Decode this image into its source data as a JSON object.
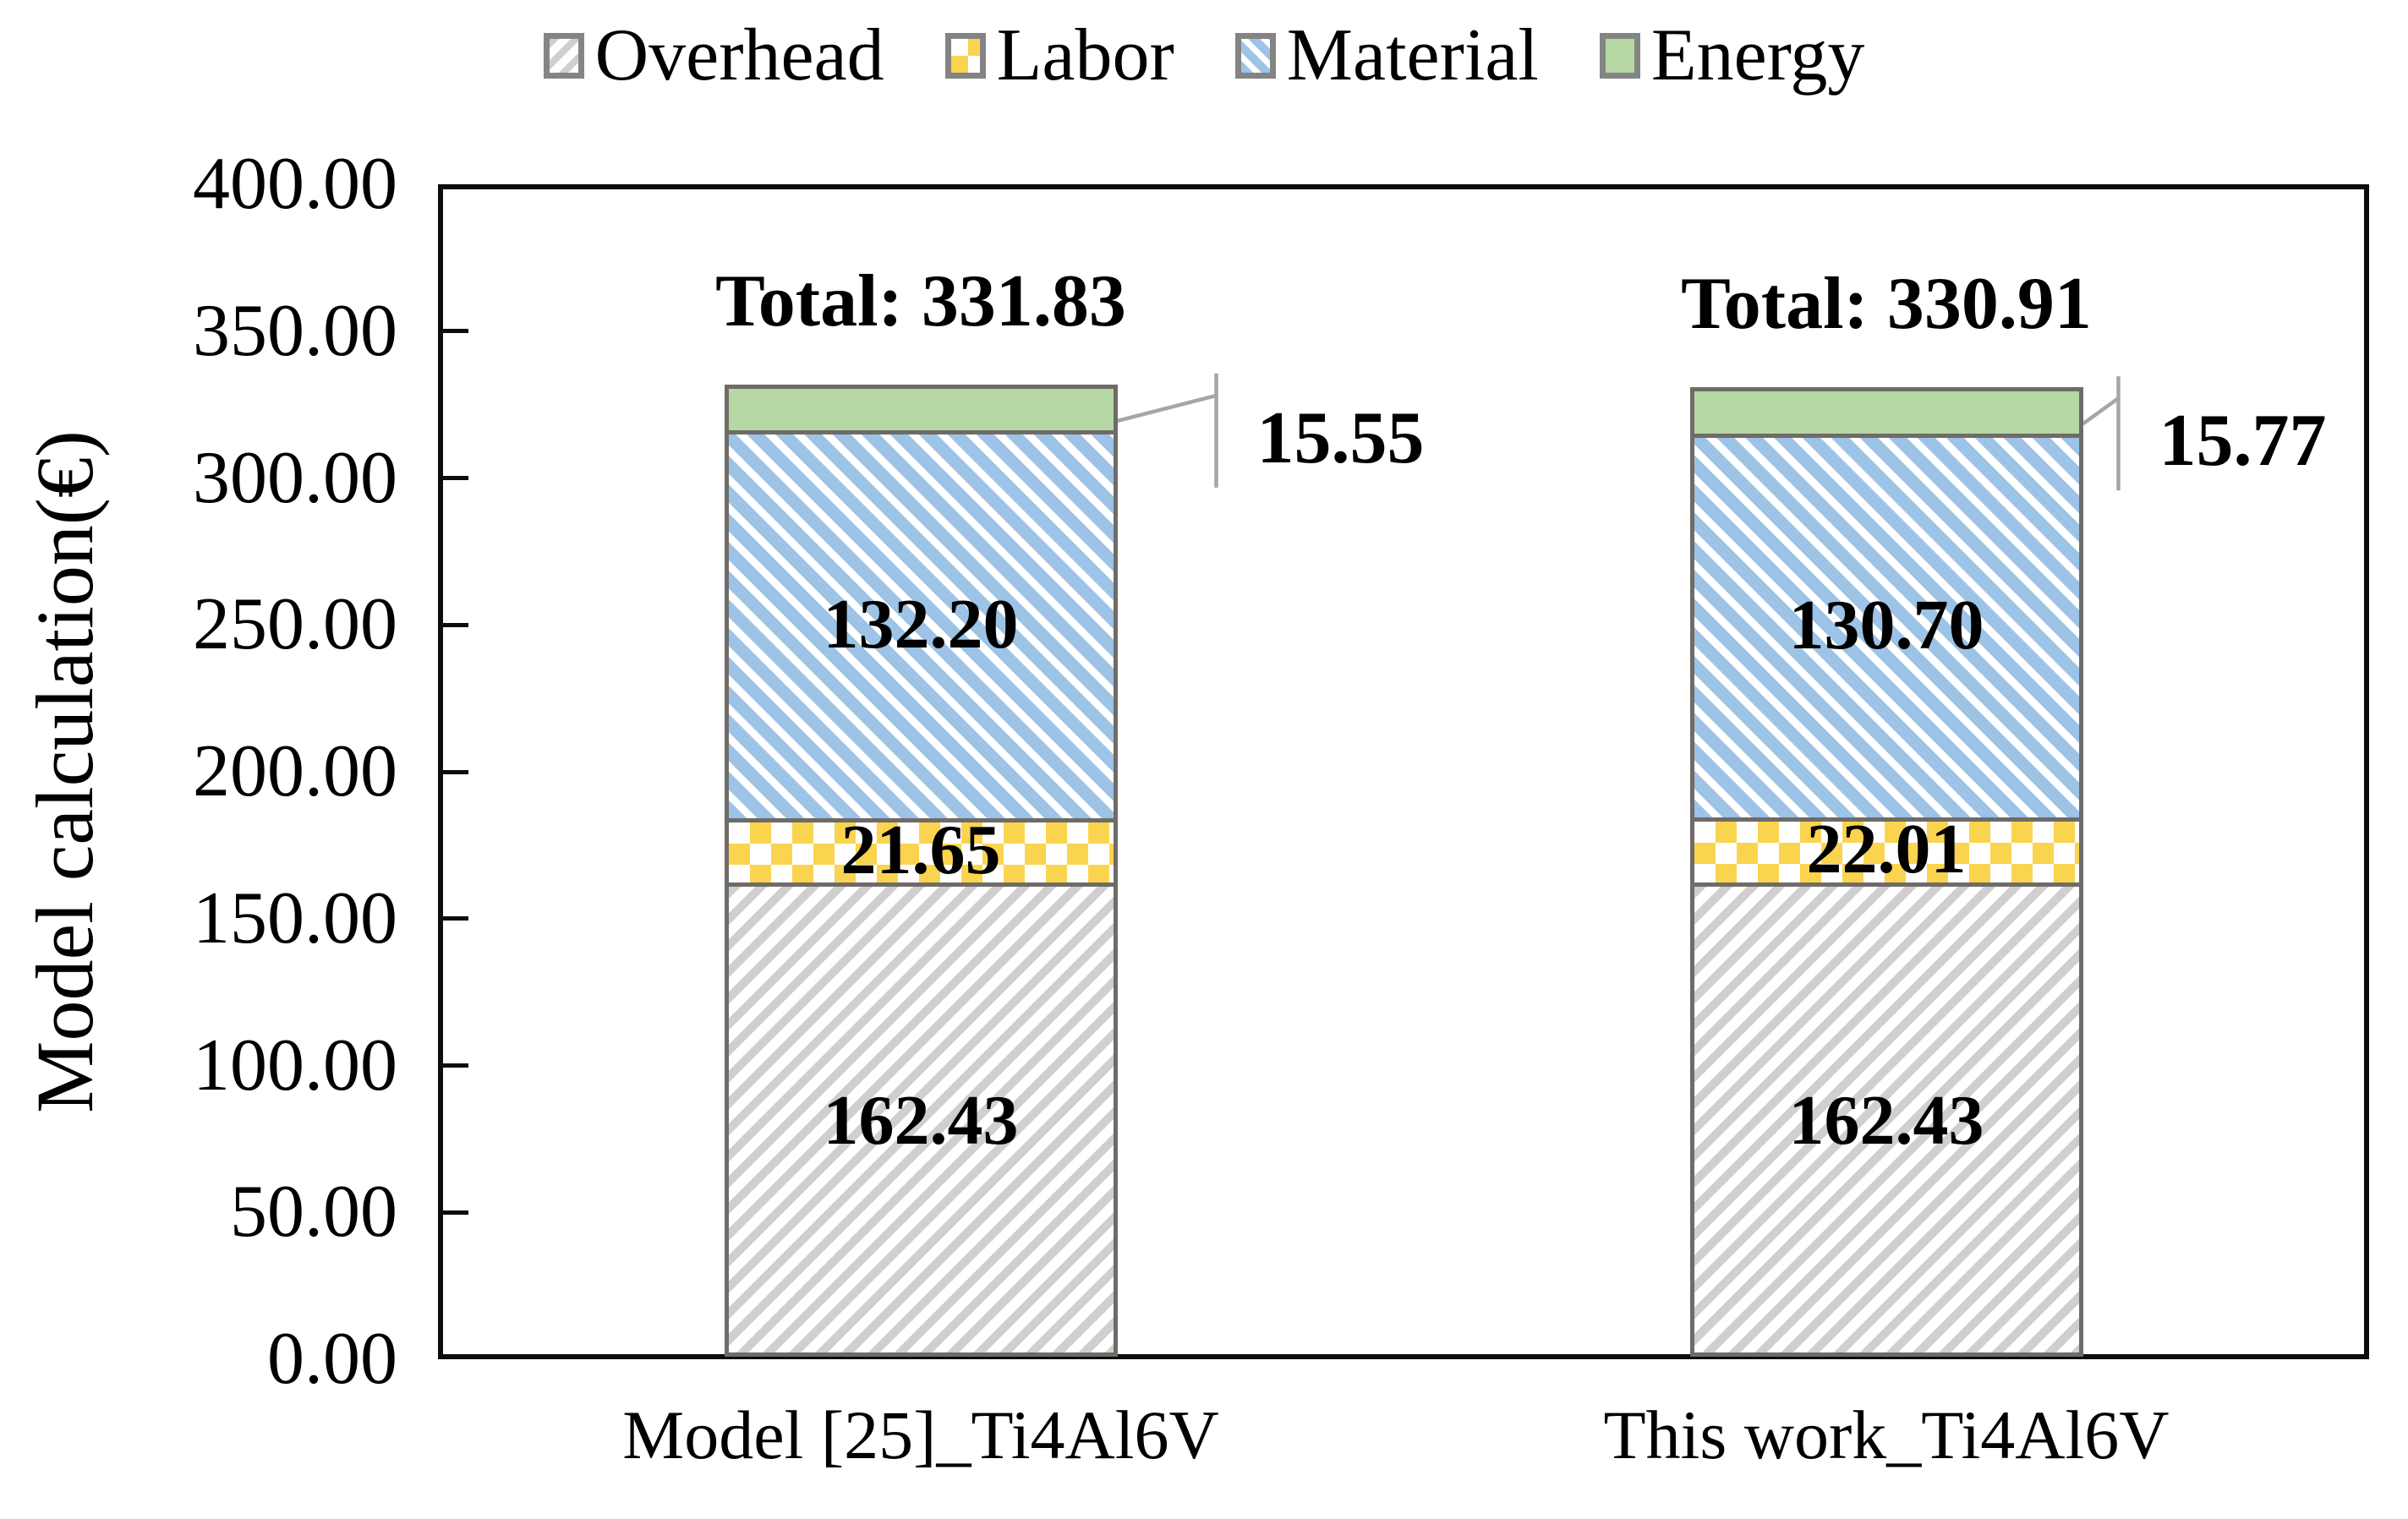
{
  "y_axis": {
    "title": "Model calculation(€)",
    "min": 0,
    "max": 400,
    "step": 50,
    "tick_labels": [
      "0.00",
      "50.00",
      "100.00",
      "150.00",
      "200.00",
      "250.00",
      "300.00",
      "350.00",
      "400.00"
    ]
  },
  "chart_data": {
    "type": "bar",
    "stacked": true,
    "title": "",
    "xlabel": "",
    "ylabel": "Model calculation(€)",
    "ylim": [
      0,
      400
    ],
    "grid": false,
    "legend_position": "top",
    "categories": [
      "Model [25]_Ti4Al6V",
      "This work_Ti4Al6V"
    ],
    "series": [
      {
        "name": "Overhead",
        "values": [
          162.43,
          162.43
        ],
        "labels": [
          "162.43",
          "162.43"
        ],
        "color": "#d0cece",
        "pattern": "diagonal-stripe-up",
        "label_placement": "inside"
      },
      {
        "name": "Labor",
        "values": [
          21.65,
          22.01
        ],
        "labels": [
          "21.65",
          "22.01"
        ],
        "color": "#fad44f",
        "pattern": "checker",
        "label_placement": "inside"
      },
      {
        "name": "Material",
        "values": [
          132.2,
          130.7
        ],
        "labels": [
          "132.20",
          "130.70"
        ],
        "color": "#9dc3e6",
        "pattern": "diagonal-stripe-down",
        "label_placement": "inside"
      },
      {
        "name": "Energy",
        "values": [
          15.55,
          15.77
        ],
        "labels": [
          "15.55",
          "15.77"
        ],
        "color": "#b5d8a5",
        "pattern": "solid",
        "label_placement": "callout"
      }
    ],
    "totals": {
      "values": [
        331.83,
        330.91
      ],
      "labels": [
        "Total: 331.83",
        "Total: 330.91"
      ]
    },
    "colors": {
      "segment_border": "#6f6b67",
      "axis": "#0d0d0d",
      "callout_line": "#a6a6a6",
      "legend_swatch_border": "#848484",
      "pattern_background": "#ffffff"
    }
  }
}
